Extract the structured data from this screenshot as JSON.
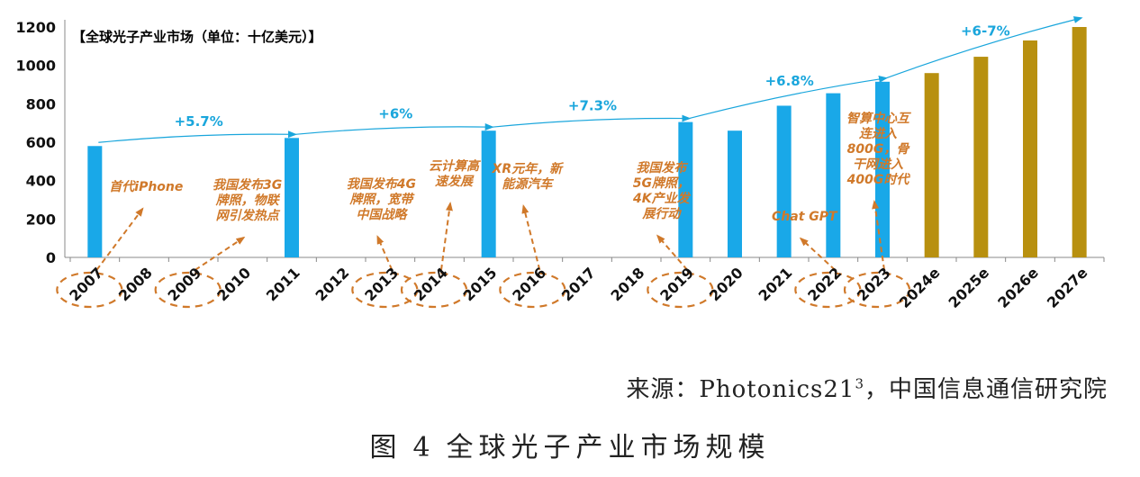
{
  "chart_data": {
    "type": "bar",
    "title": "【全球光子产业市场（单位：十亿美元）】",
    "categories": [
      "2007",
      "2008",
      "2009",
      "2010",
      "2011",
      "2012",
      "2013",
      "2014",
      "2015",
      "2016",
      "2017",
      "2018",
      "2019",
      "2020",
      "2021",
      "2022",
      "2023",
      "2024e",
      "2025e",
      "2026e",
      "2027e"
    ],
    "values": [
      580,
      null,
      null,
      null,
      622,
      null,
      null,
      null,
      660,
      null,
      null,
      null,
      705,
      660,
      790,
      855,
      915,
      960,
      1045,
      1130,
      1200
    ],
    "forecast_from": "2024e",
    "ylim": [
      0,
      1200
    ],
    "yticks": [
      0,
      200,
      400,
      600,
      800,
      1000,
      1200
    ],
    "colors": {
      "actual": "#19a8e8",
      "forecast": "#b8900f",
      "growth": "#1aa6dc",
      "milestone": "#d0792a",
      "title": "#1a1a1a"
    },
    "growth_labels": [
      "+5.7%",
      "+6%",
      "+7.3%",
      "+6.8%",
      "+6-7%"
    ],
    "annotations": [
      {
        "year": "2007",
        "text": "首代iPhone"
      },
      {
        "year": "2009",
        "text": "我国发布3G\n牌照，物联\n网引发热点"
      },
      {
        "year": "2013",
        "text": "我国发布4G\n牌照，宽带\n中国战略"
      },
      {
        "year": "2014",
        "text": "云计算高\n速发展"
      },
      {
        "year": "2016",
        "text": "XR元年，新\n能源汽车"
      },
      {
        "year": "2019",
        "text": "我国发布\n5G牌照，\n4K产业发\n展行动"
      },
      {
        "year": "2022",
        "text": "Chat GPT"
      },
      {
        "year": "2023",
        "text": "智算中心互\n连进入\n800G，骨\n干网进入\n400G时代"
      }
    ]
  },
  "source": {
    "prefix": "来源：Photonics21",
    "sup": "3",
    "suffix": "，中国信息通信研究院"
  },
  "caption": {
    "label": "图",
    "number": "4",
    "text": "全球光子产业市场规模"
  }
}
